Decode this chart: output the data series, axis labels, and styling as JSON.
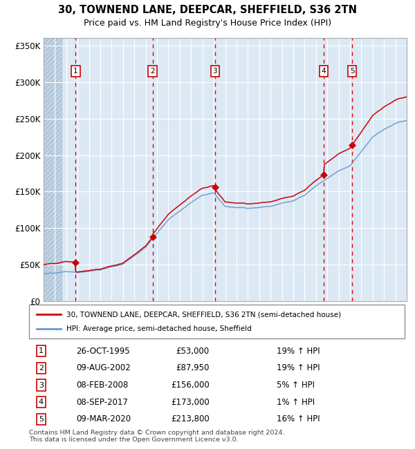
{
  "title": "30, TOWNEND LANE, DEEPCAR, SHEFFIELD, S36 2TN",
  "subtitle": "Price paid vs. HM Land Registry's House Price Index (HPI)",
  "xlim": [
    1993.0,
    2025.0
  ],
  "ylim": [
    0,
    360000
  ],
  "yticks": [
    0,
    50000,
    100000,
    150000,
    200000,
    250000,
    300000,
    350000
  ],
  "ytick_labels": [
    "£0",
    "£50K",
    "£100K",
    "£150K",
    "£200K",
    "£250K",
    "£300K",
    "£350K"
  ],
  "bg_color": "#dce9f5",
  "hatch_color": "#c0d4e8",
  "grid_color": "#ffffff",
  "red_line_color": "#cc0000",
  "blue_line_color": "#6699cc",
  "dashed_line_color": "#dd0000",
  "sale_points": [
    {
      "num": 1,
      "year": 1995.83,
      "price": 53000,
      "date": "26-OCT-1995",
      "pct": "19%",
      "dir": "↑"
    },
    {
      "num": 2,
      "year": 2002.61,
      "price": 87950,
      "date": "09-AUG-2002",
      "pct": "19%",
      "dir": "↑"
    },
    {
      "num": 3,
      "year": 2008.11,
      "price": 156000,
      "date": "08-FEB-2008",
      "pct": "5%",
      "dir": "↑"
    },
    {
      "num": 4,
      "year": 2017.69,
      "price": 173000,
      "date": "08-SEP-2017",
      "pct": "1%",
      "dir": "↑"
    },
    {
      "num": 5,
      "year": 2020.19,
      "price": 213800,
      "date": "09-MAR-2020",
      "pct": "16%",
      "dir": "↑"
    }
  ],
  "legend_entries": [
    "30, TOWNEND LANE, DEEPCAR, SHEFFIELD, S36 2TN (semi-detached house)",
    "HPI: Average price, semi-detached house, Sheffield"
  ],
  "table_rows": [
    [
      "1",
      "26-OCT-1995",
      "£53,000",
      "19% ↑ HPI"
    ],
    [
      "2",
      "09-AUG-2002",
      "£87,950",
      "19% ↑ HPI"
    ],
    [
      "3",
      "08-FEB-2008",
      "£156,000",
      "5% ↑ HPI"
    ],
    [
      "4",
      "08-SEP-2017",
      "£173,000",
      "1% ↑ HPI"
    ],
    [
      "5",
      "09-MAR-2020",
      "£213,800",
      "16% ↑ HPI"
    ]
  ],
  "footer": "Contains HM Land Registry data © Crown copyright and database right 2024.\nThis data is licensed under the Open Government Licence v3.0."
}
